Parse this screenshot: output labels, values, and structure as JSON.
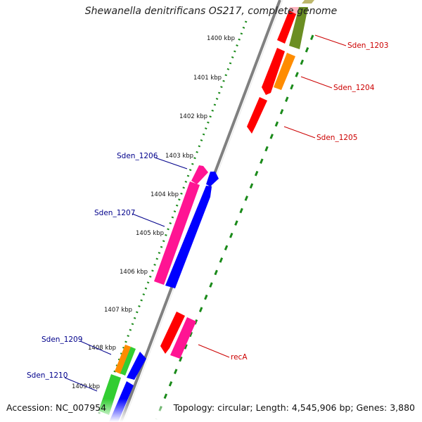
{
  "title": "Shewanella denitrificans OS217, complete genome",
  "footer": {
    "accession": "Accession: NC_007954",
    "summary": "Topology: circular; Length: 4,545,906 bp; Genes: 3,880"
  },
  "scale_labels": [
    "1400 kbp",
    "1401 kbp",
    "1402 kbp",
    "1403 kbp",
    "1404 kbp",
    "1405 kbp",
    "1406 kbp",
    "1407 kbp",
    "1408 kbp",
    "1409 kbp"
  ],
  "gene_labels": {
    "forward": [
      "Sden_1206",
      "Sden_1207",
      "Sden_1209",
      "Sden_1210"
    ],
    "reverse": [
      "Sden_1203",
      "Sden_1204",
      "Sden_1205",
      "recA"
    ]
  },
  "colors": {
    "forward_label": "#00008b",
    "reverse_label": "#cc0000",
    "backbone": "#808080",
    "dotted_track": "#1a8a1a",
    "red": "#ff0000",
    "orange": "#ff8c00",
    "olive": "#6b8e23",
    "magenta": "#ff1493",
    "blue": "#0000ff",
    "green": "#32cd32",
    "pink_light": "#ffb6c1",
    "khaki": "#bdb76b"
  }
}
